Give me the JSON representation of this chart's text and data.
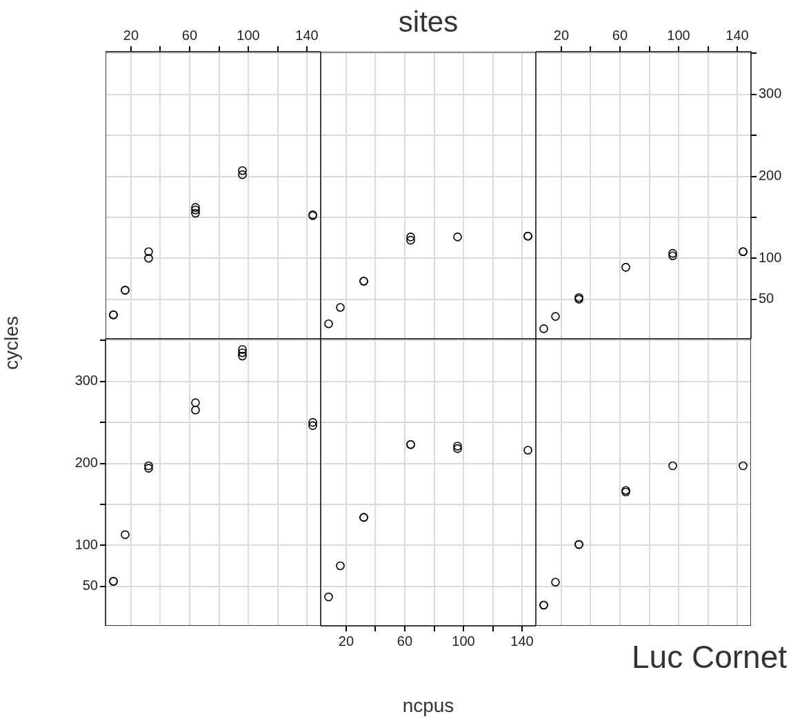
{
  "chart_data": [
    {
      "type": "scatter",
      "x": [
        8,
        8,
        16,
        16,
        32,
        32,
        64,
        64,
        64,
        96,
        96,
        144,
        144
      ],
      "values": [
        31,
        31,
        61,
        61,
        108,
        100,
        162,
        159,
        155,
        207,
        202,
        152,
        153
      ],
      "color": "#000000",
      "xlim": [
        2.6,
        149.4
      ],
      "ylim": [
        1.7,
        352
      ],
      "xticks": [
        20,
        {
          "value": 40,
          "label": null
        },
        60,
        {
          "value": 80,
          "label": null
        },
        100,
        {
          "value": 120,
          "label": null
        },
        140
      ],
      "yticks": [
        50,
        100,
        {
          "value": 150,
          "label": null
        },
        200,
        {
          "value": 250,
          "label": null
        },
        300,
        {
          "value": 350,
          "label": null
        }
      ],
      "tick_labels": "x",
      "grid": true,
      "marker": "circle"
    },
    {
      "type": "scatter",
      "title": "sites",
      "x": [
        8,
        16,
        32,
        32,
        64,
        64,
        96,
        144,
        144
      ],
      "values": [
        20,
        40,
        72,
        72,
        126,
        122,
        126,
        127,
        127
      ],
      "color": "#000000",
      "xlim": [
        2.6,
        149.4
      ],
      "ylim": [
        1.7,
        352
      ],
      "xticks": [
        20,
        {
          "value": 40,
          "label": null
        },
        60,
        {
          "value": 80,
          "label": null
        },
        100,
        {
          "value": 120,
          "label": null
        },
        140
      ],
      "yticks": [
        50,
        100,
        {
          "value": 150,
          "label": null
        },
        200,
        {
          "value": 250,
          "label": null
        },
        300,
        {
          "value": 350,
          "label": null
        }
      ],
      "tick_labels": false,
      "grid": true,
      "marker": "circle"
    },
    {
      "type": "scatter",
      "x": [
        8,
        16,
        32,
        32,
        64,
        96,
        96,
        144,
        144
      ],
      "values": [
        14,
        29,
        52,
        50,
        89,
        106,
        103,
        108,
        108
      ],
      "color": "#000000",
      "xlim": [
        2.6,
        149.4
      ],
      "ylim": [
        1.7,
        352
      ],
      "xticks": [
        20,
        {
          "value": 40,
          "label": null
        },
        60,
        {
          "value": 80,
          "label": null
        },
        100,
        {
          "value": 120,
          "label": null
        },
        140
      ],
      "yticks": [
        50,
        100,
        {
          "value": 150,
          "label": null
        },
        200,
        {
          "value": 250,
          "label": null
        },
        300,
        {
          "value": 350,
          "label": null
        }
      ],
      "grid": true,
      "marker": "circle"
    },
    {
      "type": "scatter",
      "ylabel": "cycles",
      "x": [
        8,
        8,
        16,
        32,
        32,
        64,
        64,
        96,
        96,
        96,
        144,
        144
      ],
      "values": [
        56,
        56,
        113,
        197,
        194,
        274,
        265,
        339,
        335,
        331,
        250,
        246
      ],
      "color": "#000000",
      "xlim": [
        2.6,
        149.4
      ],
      "ylim": [
        1.7,
        352
      ],
      "xticks": [
        20,
        {
          "value": 40,
          "label": null
        },
        60,
        {
          "value": 80,
          "label": null
        },
        100,
        {
          "value": 120,
          "label": null
        },
        140
      ],
      "yticks": [
        50,
        100,
        {
          "value": 150,
          "label": null
        },
        200,
        {
          "value": 250,
          "label": null
        },
        300,
        {
          "value": 350,
          "label": null
        }
      ],
      "tick_labels": "y",
      "grid": true,
      "marker": "circle"
    },
    {
      "type": "scatter",
      "xlabel": "ncpus",
      "x": [
        8,
        16,
        32,
        32,
        64,
        64,
        96,
        96,
        144
      ],
      "values": [
        37,
        75,
        134,
        134,
        223,
        223,
        221,
        218,
        216
      ],
      "color": "#000000",
      "xlim": [
        2.6,
        149.4
      ],
      "ylim": [
        1.7,
        352
      ],
      "xticks": [
        20,
        {
          "value": 40,
          "label": null
        },
        60,
        {
          "value": 80,
          "label": null
        },
        100,
        {
          "value": 120,
          "label": null
        },
        140
      ],
      "yticks": [
        50,
        100,
        {
          "value": 150,
          "label": null
        },
        200,
        {
          "value": 250,
          "label": null
        },
        300,
        {
          "value": 350,
          "label": null
        }
      ],
      "tick_labels": "x",
      "grid": true,
      "marker": "circle"
    },
    {
      "type": "scatter",
      "annotations": [
        "Luc Cornet"
      ],
      "x": [
        8,
        8,
        16,
        32,
        32,
        64,
        64,
        96,
        144
      ],
      "values": [
        27,
        27,
        55,
        101,
        101,
        167,
        165,
        197,
        197
      ],
      "color": "#000000",
      "xlim": [
        2.6,
        149.4
      ],
      "ylim": [
        1.7,
        352
      ],
      "xticks": [
        20,
        {
          "value": 40,
          "label": null
        },
        60,
        {
          "value": 80,
          "label": null
        },
        100,
        {
          "value": 120,
          "label": null
        },
        140
      ],
      "yticks": [
        50,
        100,
        {
          "value": 150,
          "label": null
        },
        200,
        {
          "value": 250,
          "label": null
        },
        300,
        {
          "value": 350,
          "label": null
        }
      ],
      "tick_labels": false,
      "grid": true,
      "marker": "circle"
    }
  ]
}
